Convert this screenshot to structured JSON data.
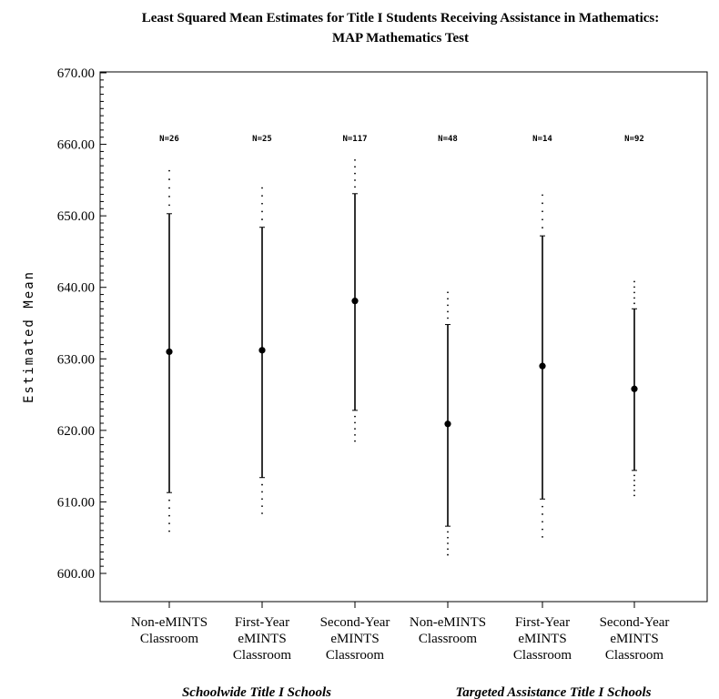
{
  "chart_data": {
    "type": "scatter",
    "title_lines": [
      "Least Squared Mean Estimates  for Title I Students Receiving Assistance in Mathematics:",
      "MAP Mathematics Test"
    ],
    "ylabel": "Estimated Mean",
    "ylim": [
      600,
      670
    ],
    "yticks": [
      "600.00",
      "610.00",
      "620.00",
      "630.00",
      "640.00",
      "650.00",
      "660.00",
      "670.00"
    ],
    "categories": [
      [
        "Non-eMINTS",
        "Classroom"
      ],
      [
        "First-Year",
        "eMINTS",
        "Classroom"
      ],
      [
        "Second-Year",
        "eMINTS",
        "Classroom"
      ],
      [
        "Non-eMINTS",
        "Classroom"
      ],
      [
        "First-Year",
        "eMINTS",
        "Classroom"
      ],
      [
        "Second-Year",
        "eMINTS",
        "Classroom"
      ]
    ],
    "n_labels": [
      "N=26",
      "N=25",
      "N=117",
      "N=48",
      "N=14",
      "N=92"
    ],
    "group_labels": [
      "Schoolwide Title I Schools",
      "Targeted Assistance Title I Schools"
    ],
    "mean": [
      631.0,
      631.2,
      638.1,
      620.9,
      629.0,
      625.8
    ],
    "ci_low": [
      611.3,
      613.4,
      622.8,
      606.6,
      610.4,
      614.4
    ],
    "ci_high": [
      650.3,
      648.4,
      653.1,
      634.8,
      647.2,
      637.0
    ],
    "dotted_low": [
      605.9,
      608.4,
      618.5,
      602.6,
      605.1,
      610.9
    ],
    "dotted_high": [
      656.3,
      653.9,
      657.8,
      639.3,
      652.9,
      640.8
    ]
  }
}
